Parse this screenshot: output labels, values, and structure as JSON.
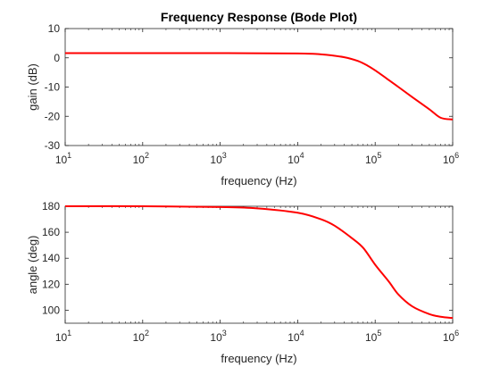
{
  "chart_data": [
    {
      "type": "line",
      "title": "Frequency Response (Bode Plot)",
      "xlabel": "frequency (Hz)",
      "ylabel": "gain (dB)",
      "xscale": "log",
      "xlim": [
        10,
        1000000
      ],
      "ylim": [
        -30,
        10
      ],
      "xticks": [
        {
          "base": "10",
          "exp": "1"
        },
        {
          "base": "10",
          "exp": "2"
        },
        {
          "base": "10",
          "exp": "3"
        },
        {
          "base": "10",
          "exp": "4"
        },
        {
          "base": "10",
          "exp": "5"
        },
        {
          "base": "10",
          "exp": "6"
        }
      ],
      "yticks": [
        "-30",
        "-20",
        "-10",
        "0",
        "10"
      ],
      "grid": false,
      "color": "#ff0000",
      "series": [
        {
          "x": [
            10,
            100,
            1000,
            10000,
            20000,
            40000,
            60000,
            80000,
            100000,
            150000,
            200000,
            300000,
            500000,
            700000,
            1000000
          ],
          "values": [
            1.6,
            1.6,
            1.6,
            1.5,
            1.2,
            0.2,
            -1.1,
            -2.7,
            -4.3,
            -7.6,
            -10.0,
            -13.4,
            -17.6,
            -20.5,
            -21.1
          ]
        }
      ]
    },
    {
      "type": "line",
      "xlabel": "frequency (Hz)",
      "ylabel": "angle (deg)",
      "xscale": "log",
      "xlim": [
        10,
        1000000
      ],
      "ylim": [
        90,
        180
      ],
      "xticks": [
        {
          "base": "10",
          "exp": "1"
        },
        {
          "base": "10",
          "exp": "2"
        },
        {
          "base": "10",
          "exp": "3"
        },
        {
          "base": "10",
          "exp": "4"
        },
        {
          "base": "10",
          "exp": "5"
        },
        {
          "base": "10",
          "exp": "6"
        }
      ],
      "yticks": [
        "100",
        "120",
        "140",
        "160",
        "180"
      ],
      "grid": false,
      "color": "#ff0000",
      "series": [
        {
          "x": [
            10,
            100,
            1000,
            3000,
            10000,
            20000,
            30000,
            50000,
            70000,
            100000,
            150000,
            200000,
            300000,
            500000,
            700000,
            1000000
          ],
          "values": [
            180,
            180,
            179.4,
            178.4,
            175,
            170,
            165,
            155.5,
            148,
            135,
            122,
            112,
            103,
            97,
            95,
            94
          ]
        }
      ]
    }
  ]
}
